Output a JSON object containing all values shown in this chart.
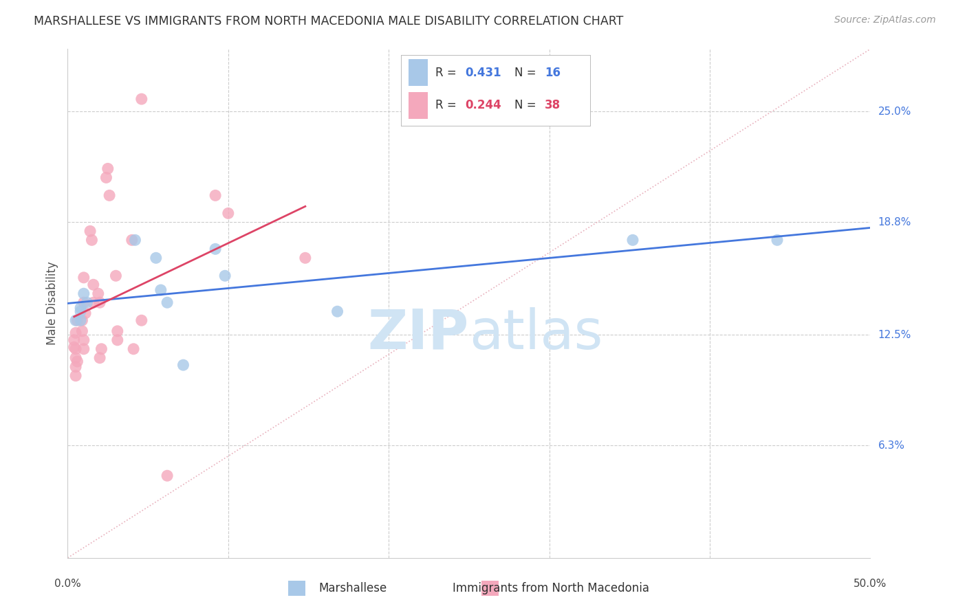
{
  "title": "MARSHALLESE VS IMMIGRANTS FROM NORTH MACEDONIA MALE DISABILITY CORRELATION CHART",
  "source": "Source: ZipAtlas.com",
  "ylabel": "Male Disability",
  "ytick_labels": [
    "25.0%",
    "18.8%",
    "12.5%",
    "6.3%"
  ],
  "ytick_values": [
    0.25,
    0.188,
    0.125,
    0.063
  ],
  "xlim": [
    0.0,
    0.5
  ],
  "ylim": [
    0.0,
    0.285
  ],
  "legend_r1": "0.431",
  "legend_n1": "16",
  "legend_r2": "0.244",
  "legend_n2": "38",
  "blue_color": "#a8c8e8",
  "pink_color": "#f4a8bc",
  "blue_line_color": "#4477dd",
  "pink_line_color": "#dd4466",
  "diagonal_color": "#e8b0bc",
  "blue_scatter_x": [
    0.008,
    0.012,
    0.008,
    0.01,
    0.008,
    0.005,
    0.042,
    0.055,
    0.058,
    0.062,
    0.072,
    0.092,
    0.098,
    0.168,
    0.352,
    0.442
  ],
  "blue_scatter_y": [
    0.14,
    0.143,
    0.133,
    0.148,
    0.138,
    0.133,
    0.178,
    0.168,
    0.15,
    0.143,
    0.108,
    0.173,
    0.158,
    0.138,
    0.178,
    0.178
  ],
  "pink_scatter_x": [
    0.004,
    0.004,
    0.005,
    0.005,
    0.005,
    0.005,
    0.005,
    0.006,
    0.006,
    0.009,
    0.009,
    0.01,
    0.01,
    0.01,
    0.01,
    0.011,
    0.014,
    0.015,
    0.016,
    0.016,
    0.019,
    0.02,
    0.02,
    0.021,
    0.024,
    0.025,
    0.026,
    0.03,
    0.031,
    0.031,
    0.04,
    0.041,
    0.046,
    0.046,
    0.062,
    0.092,
    0.1,
    0.148
  ],
  "pink_scatter_y": [
    0.118,
    0.122,
    0.126,
    0.112,
    0.107,
    0.102,
    0.117,
    0.11,
    0.133,
    0.133,
    0.127,
    0.122,
    0.117,
    0.157,
    0.143,
    0.137,
    0.183,
    0.178,
    0.153,
    0.143,
    0.148,
    0.143,
    0.112,
    0.117,
    0.213,
    0.218,
    0.203,
    0.158,
    0.122,
    0.127,
    0.178,
    0.117,
    0.133,
    0.257,
    0.046,
    0.203,
    0.193,
    0.168
  ],
  "background_color": "#ffffff",
  "watermark_zip": "ZIP",
  "watermark_atlas": "atlas",
  "watermark_color": "#d0e4f4"
}
